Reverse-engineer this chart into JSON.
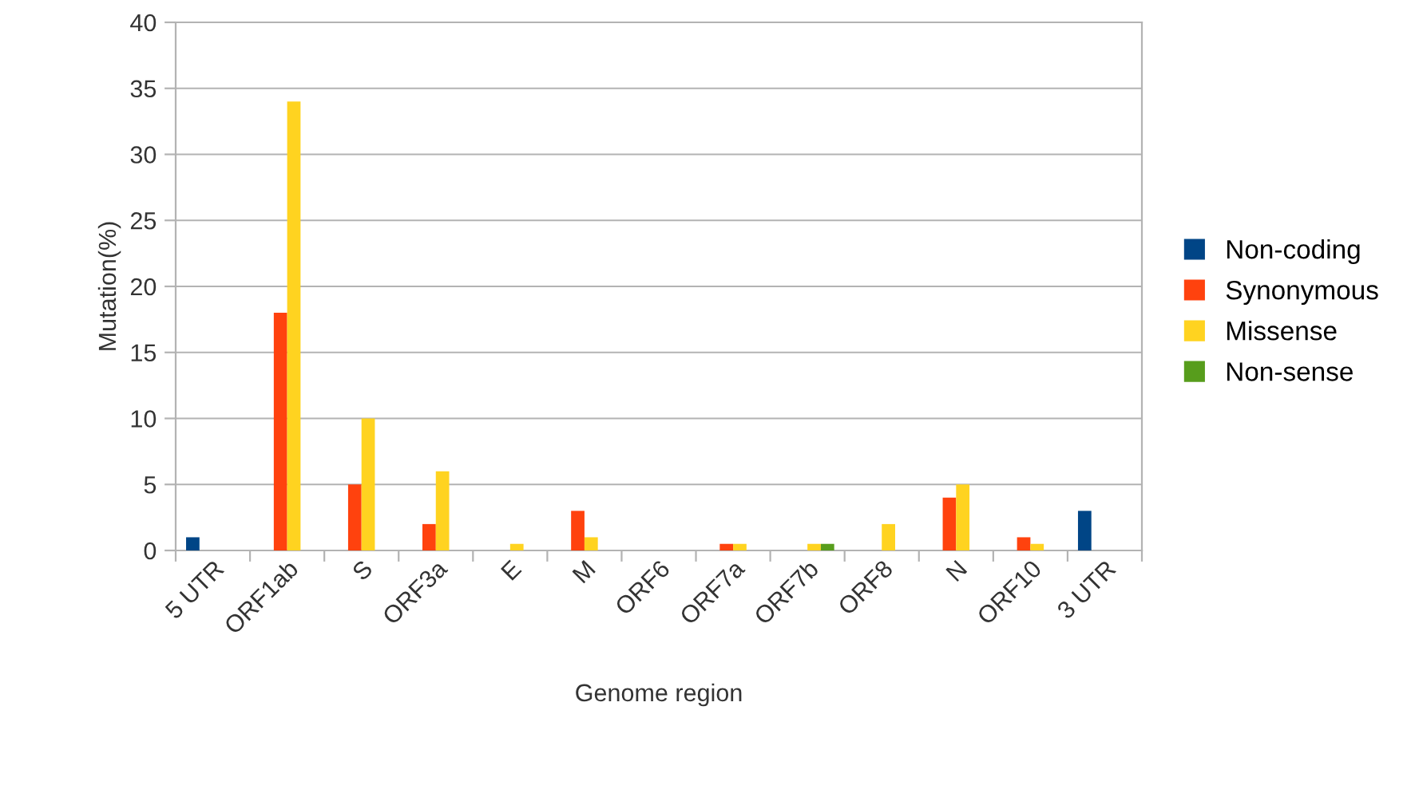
{
  "chart_data": {
    "type": "bar",
    "xlabel": "Genome region",
    "ylabel": "Mutation(%)",
    "categories": [
      "5 UTR",
      "ORF1ab",
      "S",
      "ORF3a",
      "E",
      "M",
      "ORF6",
      "ORF7a",
      "ORF7b",
      "ORF8",
      "N",
      "ORF10",
      "3 UTR"
    ],
    "series": [
      {
        "name": "Non-coding",
        "color": "#004586",
        "values": [
          1,
          null,
          null,
          null,
          null,
          null,
          null,
          null,
          null,
          null,
          null,
          null,
          3
        ]
      },
      {
        "name": "Synonymous",
        "color": "#ff420e",
        "values": [
          null,
          18,
          5,
          2,
          null,
          3,
          null,
          0.5,
          null,
          null,
          4,
          1,
          null
        ]
      },
      {
        "name": "Missense",
        "color": "#ffd320",
        "values": [
          null,
          34,
          10,
          6,
          0.5,
          1,
          null,
          0.5,
          0.5,
          2,
          5,
          0.5,
          null
        ]
      },
      {
        "name": "Non-sense",
        "color": "#579d1c",
        "values": [
          null,
          null,
          null,
          null,
          null,
          null,
          null,
          null,
          0.5,
          null,
          null,
          null,
          null
        ]
      }
    ],
    "ylim": [
      0,
      40
    ],
    "yticks": [
      0,
      5,
      10,
      15,
      20,
      25,
      30,
      35,
      40
    ],
    "grid": "y",
    "legend": "right"
  }
}
